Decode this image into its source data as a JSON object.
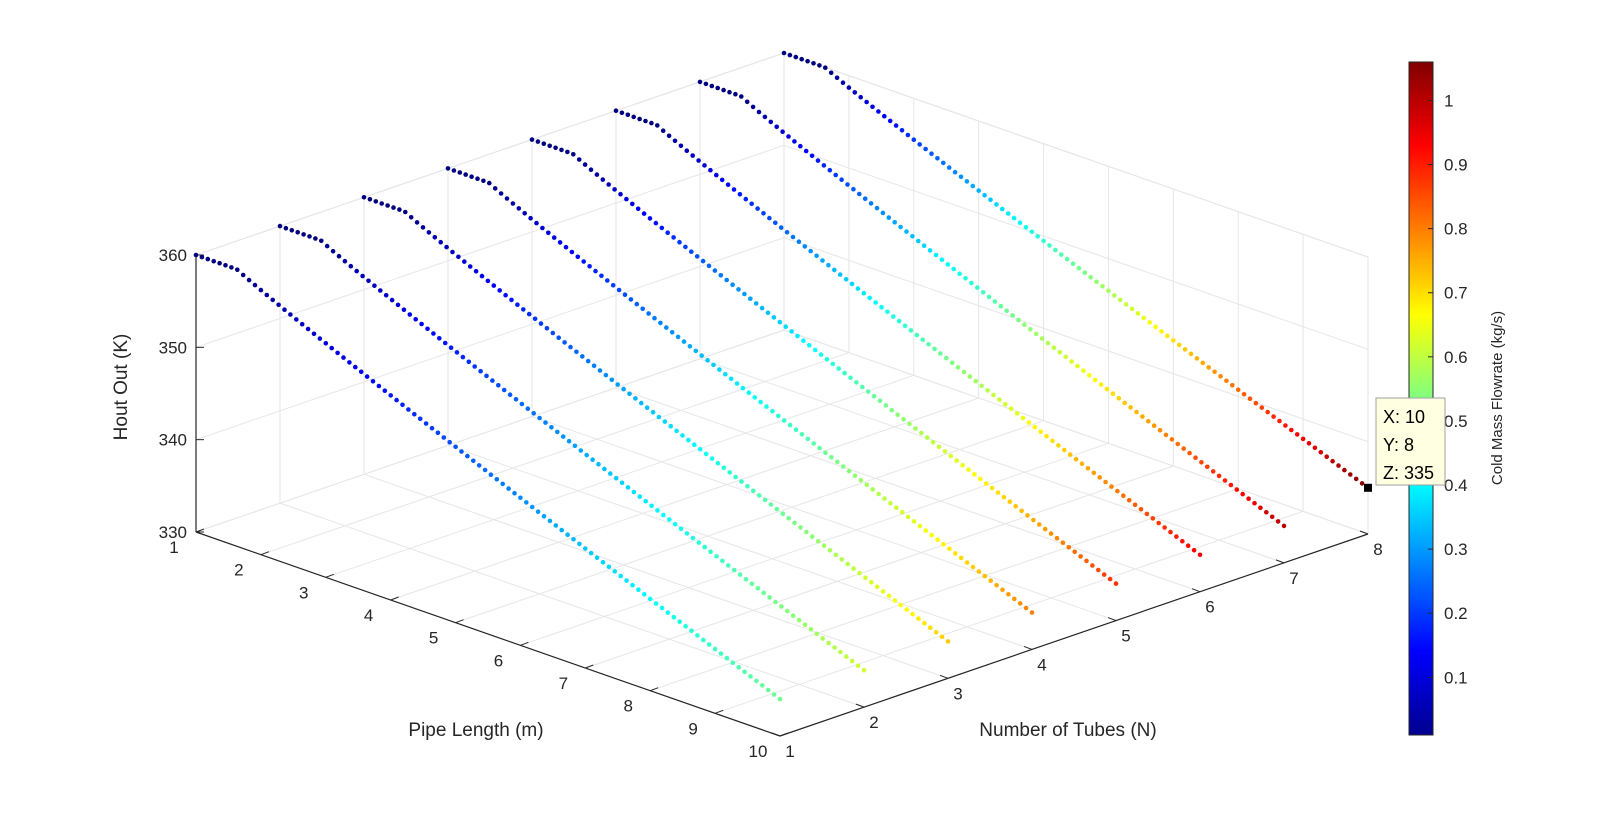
{
  "chart_data": {
    "type": "scatter3d",
    "xlabel": "Pipe Length (m)",
    "ylabel": "Number of Tubes (N)",
    "zlabel": "Hout Out (K)",
    "colorbar_label": "Cold Mass Flowrate (kg/s)",
    "xlim": [
      1,
      10
    ],
    "ylim": [
      1,
      8
    ],
    "zlim": [
      330,
      360
    ],
    "x_ticks": [
      "1",
      "2",
      "3",
      "4",
      "5",
      "6",
      "7",
      "8",
      "9",
      "10"
    ],
    "y_ticks": [
      "1",
      "2",
      "3",
      "4",
      "5",
      "6",
      "7",
      "8"
    ],
    "z_ticks": [
      "330",
      "340",
      "350",
      "360"
    ],
    "colorbar_ticks": [
      "0.1",
      "0.2",
      "0.3",
      "0.4",
      "0.5",
      "0.6",
      "0.7",
      "0.8",
      "0.9",
      "1"
    ],
    "colorbar_range": [
      0.01,
      1.06
    ],
    "colormap": "jet",
    "grid": true,
    "series": [
      {
        "tubes": 1,
        "x_start": 1,
        "x_end": 10,
        "z_start": 360,
        "z_end": 334,
        "c_start": 0.01,
        "c_end": 0.52
      },
      {
        "tubes": 2,
        "x_start": 1,
        "x_end": 10,
        "z_start": 360,
        "z_end": 334,
        "c_start": 0.01,
        "c_end": 0.62
      },
      {
        "tubes": 3,
        "x_start": 1,
        "x_end": 10,
        "z_start": 360,
        "z_end": 334,
        "c_start": 0.01,
        "c_end": 0.72
      },
      {
        "tubes": 4,
        "x_start": 1,
        "x_end": 10,
        "z_start": 360,
        "z_end": 334,
        "c_start": 0.01,
        "c_end": 0.8
      },
      {
        "tubes": 5,
        "x_start": 1,
        "x_end": 10,
        "z_start": 360,
        "z_end": 334,
        "c_start": 0.01,
        "c_end": 0.88
      },
      {
        "tubes": 6,
        "x_start": 1,
        "x_end": 10,
        "z_start": 360,
        "z_end": 334,
        "c_start": 0.01,
        "c_end": 0.94
      },
      {
        "tubes": 7,
        "x_start": 1,
        "x_end": 10,
        "z_start": 360,
        "z_end": 334,
        "c_start": 0.01,
        "c_end": 1.0
      },
      {
        "tubes": 8,
        "x_start": 1,
        "x_end": 10,
        "z_start": 360,
        "z_end": 335,
        "c_start": 0.01,
        "c_end": 1.06
      }
    ]
  },
  "datatip": {
    "x_line": "X: 10",
    "y_line": "Y: 8",
    "z_line": "Z: 335",
    "point": {
      "x": 10,
      "y": 8,
      "z": 335
    }
  }
}
